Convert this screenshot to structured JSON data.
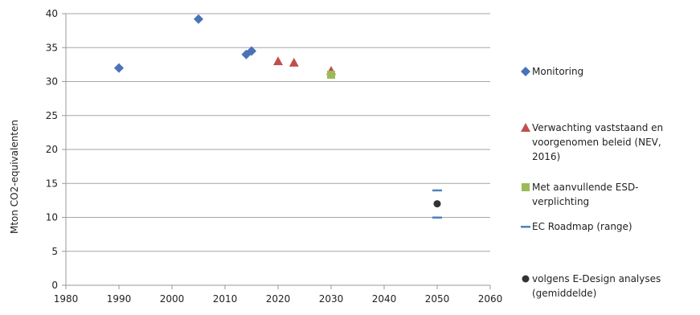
{
  "chart_data": {
    "type": "scatter",
    "title": "",
    "xlabel": "",
    "ylabel": "Mton CO2-equivalenten",
    "xlim": [
      1980,
      2060
    ],
    "ylim": [
      0,
      40
    ],
    "xticks": [
      1980,
      1990,
      2000,
      2010,
      2020,
      2030,
      2040,
      2050,
      2060
    ],
    "yticks": [
      0,
      5,
      10,
      15,
      20,
      25,
      30,
      35,
      40
    ],
    "grid": "horizontal",
    "legend_position": "right",
    "series": [
      {
        "name": "Monitoring",
        "marker": "diamond",
        "color": "#4a72b8",
        "points": [
          [
            1990,
            32.0
          ],
          [
            2005,
            39.2
          ],
          [
            2014,
            34.0
          ],
          [
            2015,
            34.5
          ]
        ]
      },
      {
        "name": "Verwachting vaststaand en\nvoorgenomen beleid (NEV,\n2016)",
        "marker": "triangle",
        "color": "#c0504d",
        "points": [
          [
            2020,
            33.0
          ],
          [
            2023,
            32.8
          ],
          [
            2030,
            31.6
          ]
        ]
      },
      {
        "name": "Met aanvullende ESD-\nverplichting",
        "marker": "square",
        "color": "#9bbb59",
        "points": [
          [
            2030,
            31.0
          ]
        ]
      },
      {
        "name": "EC Roadmap (range)",
        "marker": "dash",
        "color": "#4f81bd",
        "points": [
          [
            2050,
            14.0
          ],
          [
            2050,
            10.0
          ]
        ]
      },
      {
        "name": "volgens E-Design analyses\n(gemiddelde)",
        "marker": "circle",
        "color": "#333333",
        "points": [
          [
            2050,
            12.0
          ]
        ]
      }
    ]
  }
}
